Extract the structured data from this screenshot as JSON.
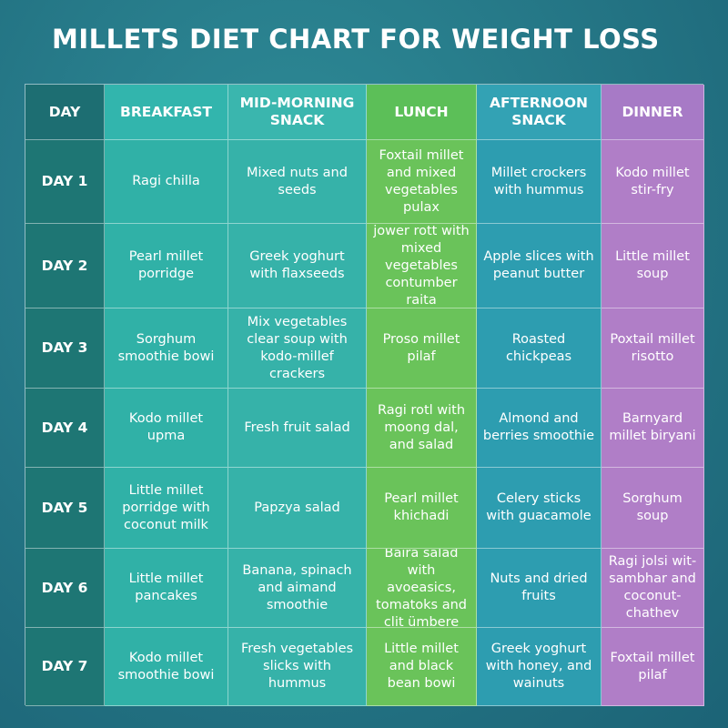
{
  "header": {
    "title": "MILLETS DIET CHART FOR WEIGHT LOSS"
  },
  "table": {
    "columns": [
      "DAY",
      "BREAKFAST",
      "MID-MORNING SNACK",
      "LUNCH",
      "AFTERNOON SNACK",
      "DINNER"
    ],
    "rows": [
      [
        "DAY 1",
        "Ragi chilla",
        "Mixed nuts and seeds",
        "Foxtail millet and mixed vegetables pulax",
        "Millet crockers with hummus",
        "Kodo millet stir-fry"
      ],
      [
        "DAY 2",
        "Pearl millet porridge",
        "Greek yoghurt with flaxseeds",
        "jower rott with mixed vegetables contumber raita",
        "Apple slices with peanut butter",
        "Little millet soup"
      ],
      [
        "DAY 3",
        "Sorghum smoothie bowi",
        "Mix vegetables clear soup with kodo-millef crackers",
        "Proso millet pilaf",
        "Roasted chickpeas",
        "Poxtail millet risotto"
      ],
      [
        "DAY 4",
        "Kodo millet upma",
        "Fresh fruit salad",
        "Ragi rotl with moong dal, and salad",
        "Almond and berries smoothie",
        "Barnyard millet biryani"
      ],
      [
        "DAY 5",
        "Little millet porridge with coconut milk",
        "Papzya salad",
        "Pearl millet khichadi",
        "Celery sticks with guacamole",
        "Sorghum soup"
      ],
      [
        "DAY 6",
        "Little millet pancakes",
        "Banana, spinach and aimand smoothie",
        "Baira salad with avoeasics, tomatoks and clit ümbere",
        "Nuts and dried fruits",
        "Ragi jolsi wit-sambhar and coconut-chathev"
      ],
      [
        "DAY 7",
        "Kodo millet smoothie bowi",
        "Fresh vegetables slicks with hummus",
        "Little millet and black bean bowi",
        "Greek yoghurt with honey, and wainuts",
        "Foxtail millet pilaf"
      ]
    ]
  }
}
